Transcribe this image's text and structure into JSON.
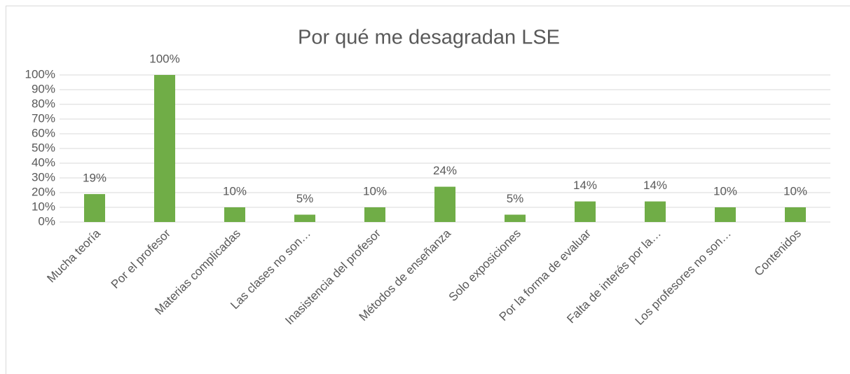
{
  "chart_data": {
    "type": "bar",
    "title": "Por qué me desagradan LSE",
    "categories": [
      "Mucha teoría",
      "Por el profesor",
      "Materias complicadas",
      "Las clases no son…",
      "Inasistencia del profesor",
      "Métodos de enseñanza",
      "Solo exposiciones",
      "Por la forma de evaluar",
      "Falta de interés por la…",
      "Los profesores no son…",
      "Contenidos"
    ],
    "values": [
      19,
      100,
      10,
      5,
      10,
      24,
      5,
      14,
      14,
      10,
      10
    ],
    "value_labels": [
      "19%",
      "100%",
      "10%",
      "5%",
      "10%",
      "24%",
      "5%",
      "14%",
      "14%",
      "10%",
      "10%"
    ],
    "color": "#70ad47",
    "ylim": [
      0,
      100
    ],
    "yticks": [
      {
        "value": 0,
        "label": "0%"
      },
      {
        "value": 10,
        "label": "10%"
      },
      {
        "value": 20,
        "label": "20%"
      },
      {
        "value": 30,
        "label": "30%"
      },
      {
        "value": 40,
        "label": "40%"
      },
      {
        "value": 50,
        "label": "50%"
      },
      {
        "value": 60,
        "label": "60%"
      },
      {
        "value": 70,
        "label": "70%"
      },
      {
        "value": 80,
        "label": "80%"
      },
      {
        "value": 90,
        "label": "90%"
      },
      {
        "value": 100,
        "label": "100%"
      }
    ],
    "grid": true
  }
}
